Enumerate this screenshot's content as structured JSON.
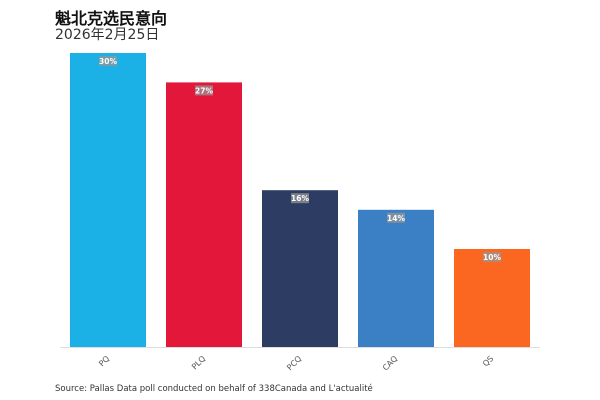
{
  "title": "魁北克选民意向",
  "subtitle": "2026年2月25日",
  "source": "Source: Pallas Data poll conducted on behalf of 338Canada and L'actualité",
  "chart_data": {
    "type": "bar",
    "title": "魁北克选民意向",
    "subtitle": "2026年2月25日",
    "categories": [
      "PQ",
      "PLQ",
      "PCQ",
      "CAQ",
      "QS"
    ],
    "values": [
      30,
      27,
      16,
      14,
      10
    ],
    "data_labels": [
      "30%",
      "27%",
      "16%",
      "14%",
      "10%"
    ],
    "colors": [
      "#1bb0e6",
      "#e2173a",
      "#2c3c63",
      "#3b80c4",
      "#fb6720"
    ],
    "ylim": [
      0,
      30
    ],
    "xlabel": "",
    "ylabel": "",
    "grid": false,
    "legend": "none"
  }
}
